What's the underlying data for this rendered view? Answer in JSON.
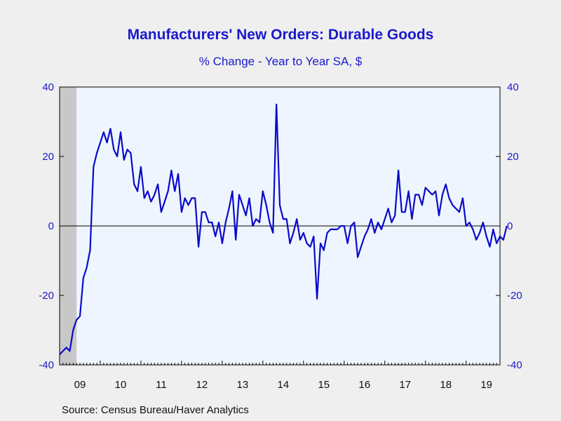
{
  "chart_data": {
    "type": "line",
    "title": "Manufacturers' New Orders: Durable Goods",
    "subtitle": "% Change - Year to Year    SA, $",
    "source": "Source:  Census Bureau/Haver Analytics",
    "ylim": [
      -40,
      40
    ],
    "yticks": [
      -40,
      -20,
      0,
      20,
      40
    ],
    "year_labels": [
      "09",
      "10",
      "11",
      "12",
      "13",
      "14",
      "15",
      "16",
      "17",
      "18",
      "19"
    ],
    "start": "2009-01",
    "recession_shading": {
      "from": "2009-01",
      "to": "2009-06"
    },
    "colors": {
      "line": "#0a0ac8",
      "plot_bg": "#eef5ff",
      "axis_text": "#1a1acc",
      "recession": "#c8c8c8"
    },
    "series": [
      {
        "values": [
          -37,
          -36,
          -35,
          -36,
          -30,
          -27,
          -26,
          -15,
          -12,
          -7,
          17,
          21,
          24,
          27,
          24,
          28,
          22,
          20,
          27,
          19,
          22,
          21,
          12,
          10,
          17,
          8,
          10,
          7,
          9,
          12,
          4,
          7,
          10,
          16,
          10,
          15,
          4,
          8,
          6,
          8,
          8,
          -6,
          4,
          4,
          1,
          1,
          -3,
          1,
          -5,
          1,
          5,
          10,
          -4,
          9,
          6,
          3,
          8,
          0,
          2,
          1,
          10,
          6,
          1,
          -2,
          35,
          6,
          2,
          2,
          -5,
          -2,
          2,
          -4,
          -2,
          -5,
          -6,
          -3,
          -21,
          -5,
          -7,
          -2,
          -1,
          -1,
          -1,
          0,
          0,
          -5,
          0,
          1,
          -9,
          -6,
          -3,
          -1,
          2,
          -2,
          1,
          -1,
          2,
          5,
          1,
          3,
          16,
          4,
          4,
          10,
          2,
          9,
          9,
          6,
          11,
          10,
          9,
          10,
          3,
          9,
          12,
          8,
          6,
          5,
          4,
          8,
          0,
          1,
          -1,
          -4,
          -2,
          1,
          -3,
          -6,
          -1,
          -5,
          -3,
          -4,
          0
        ]
      }
    ]
  }
}
